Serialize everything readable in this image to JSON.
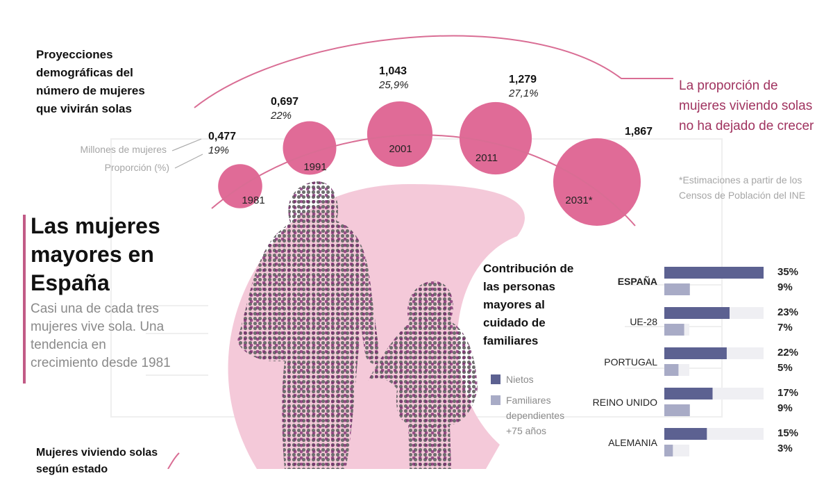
{
  "header": {
    "projection_title": "Proyecciones demográficas del número de mujeres que vivirán solas",
    "note": "La proporción de mujeres viviendo solas no ha dejado de crecer",
    "footnote": "*Estimaciones a partir de los Censos de Población del INE",
    "legend_millions": "Millones de mujeres",
    "legend_proportion": "Proporción (%)"
  },
  "main": {
    "title": "Las mujeres mayores en España",
    "subtitle": "Casi una de cada tres mujeres vive sola. Una tendencia en crecimiento desde 1981"
  },
  "bottom": {
    "title": "Mujeres viviendo solas según estado"
  },
  "colors": {
    "pink": "#e06b97",
    "light_pink": "#f4c9d9",
    "arc": "#d96d94",
    "navy": "#5c6191",
    "lavender": "#a8abc6",
    "track": "#efeff3",
    "purple_dots": "#7a2a6e"
  },
  "chart_data": [
    {
      "type": "bubble",
      "title": "Proyecciones demográficas del número de mujeres que vivirán solas",
      "categories": [
        "1981",
        "1991",
        "2001",
        "2011",
        "2031*"
      ],
      "values_millions": [
        0.477,
        0.697,
        1.043,
        1.279,
        1.867
      ],
      "value_labels": [
        "0,477",
        "0,697",
        "1,043",
        "1,279",
        "1,867"
      ],
      "proportion_labels": [
        "19%",
        "22%",
        "25,9%",
        "27,1%",
        ""
      ]
    },
    {
      "type": "bar",
      "title": "Contribución de las personas mayores al cuidado de familiares",
      "categories": [
        "ESPAÑA",
        "UE-28",
        "PORTUGAL",
        "REINO UNIDO",
        "ALEMANIA"
      ],
      "series": [
        {
          "name": "Nietos",
          "values": [
            35,
            23,
            22,
            17,
            15
          ],
          "labels": [
            "35%",
            "23%",
            "22%",
            "17%",
            "15%"
          ]
        },
        {
          "name": "Familiares dependientes +75 años",
          "values": [
            9,
            7,
            5,
            9,
            3
          ],
          "labels": [
            "9%",
            "7%",
            "5%",
            "9%",
            "3%"
          ]
        }
      ],
      "xlim": [
        0,
        35
      ]
    }
  ]
}
